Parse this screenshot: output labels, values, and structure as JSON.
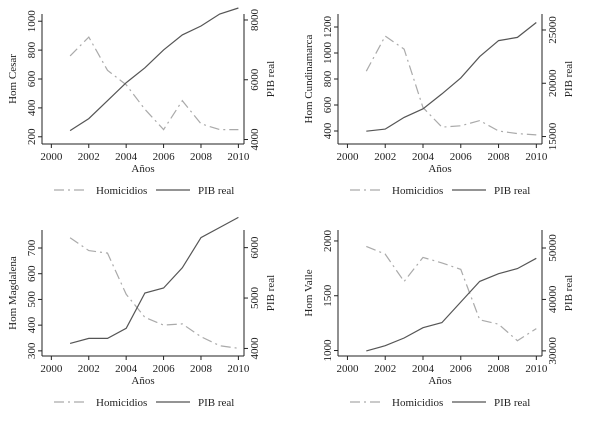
{
  "chart_data": [
    {
      "type": "line",
      "xlabel": "Años",
      "ylabel_left": "Hom Cesar",
      "ylabel_right": "PIB real",
      "x_ticks": [
        2000,
        2002,
        2004,
        2006,
        2008,
        2010
      ],
      "xlim": [
        1999.5,
        2010.3
      ],
      "left_ticks": [
        200,
        400,
        600,
        800,
        1000
      ],
      "left_lim": [
        150,
        1050
      ],
      "right_ticks": [
        4000,
        6000,
        8000
      ],
      "right_lim": [
        3850,
        8200
      ],
      "x": [
        2001,
        2002,
        2003,
        2004,
        2005,
        2006,
        2007,
        2008,
        2009,
        2010
      ],
      "series": [
        {
          "name": "Homicidios",
          "axis": "left",
          "style": "dashdot",
          "values": [
            760,
            890,
            660,
            560,
            390,
            250,
            450,
            290,
            250,
            250
          ]
        },
        {
          "name": "PIB real",
          "axis": "right",
          "style": "solid",
          "values": [
            4300,
            4700,
            5300,
            5900,
            6400,
            7000,
            7500,
            7800,
            8200,
            8400
          ]
        }
      ]
    },
    {
      "type": "line",
      "xlabel": "Años",
      "ylabel_left": "Hom Cundinamarca",
      "ylabel_right": "PIB real",
      "x_ticks": [
        2000,
        2002,
        2004,
        2006,
        2008,
        2010
      ],
      "xlim": [
        1999.5,
        2010.3
      ],
      "left_ticks": [
        400,
        600,
        800,
        1000,
        1200
      ],
      "left_lim": [
        300,
        1300
      ],
      "right_ticks": [
        15000,
        20000,
        25000
      ],
      "right_lim": [
        14300,
        26500
      ],
      "x": [
        2001,
        2002,
        2003,
        2004,
        2005,
        2006,
        2007,
        2008,
        2009,
        2010
      ],
      "series": [
        {
          "name": "Homicidios",
          "axis": "left",
          "style": "dashdot",
          "values": [
            860,
            1130,
            1030,
            580,
            430,
            440,
            480,
            400,
            380,
            370
          ]
        },
        {
          "name": "PIB real",
          "axis": "right",
          "style": "solid",
          "values": [
            15500,
            15700,
            16800,
            17600,
            19000,
            20500,
            22500,
            24000,
            24300,
            25700
          ]
        }
      ]
    },
    {
      "type": "line",
      "xlabel": "Años",
      "ylabel_left": "Hom Magdalena",
      "ylabel_right": "PIB real",
      "x_ticks": [
        2000,
        2002,
        2004,
        2006,
        2008,
        2010
      ],
      "xlim": [
        1999.5,
        2010.3
      ],
      "left_ticks": [
        300,
        400,
        500,
        600,
        700
      ],
      "left_lim": [
        280,
        770
      ],
      "right_ticks": [
        4000,
        5000,
        6000
      ],
      "right_lim": [
        3850,
        6350
      ],
      "x": [
        2001,
        2002,
        2003,
        2004,
        2005,
        2006,
        2007,
        2008,
        2009,
        2010
      ],
      "series": [
        {
          "name": "Homicidios",
          "axis": "left",
          "style": "dashdot",
          "values": [
            740,
            690,
            680,
            520,
            430,
            400,
            405,
            355,
            320,
            310
          ]
        },
        {
          "name": "PIB real",
          "axis": "right",
          "style": "solid",
          "values": [
            4100,
            4200,
            4200,
            4400,
            5100,
            5200,
            5600,
            6200,
            6400,
            6600
          ]
        }
      ]
    },
    {
      "type": "line",
      "xlabel": "Años",
      "ylabel_left": "Hom Valle",
      "ylabel_right": "PIB real",
      "x_ticks": [
        2000,
        2002,
        2004,
        2006,
        2008,
        2010
      ],
      "xlim": [
        1999.5,
        2010.3
      ],
      "left_ticks": [
        1000,
        1500,
        2000
      ],
      "left_lim": [
        950,
        2100
      ],
      "right_ticks": [
        30000,
        40000,
        50000
      ],
      "right_lim": [
        29000,
        53500
      ],
      "x": [
        2001,
        2002,
        2003,
        2004,
        2005,
        2006,
        2007,
        2008,
        2009,
        2010
      ],
      "series": [
        {
          "name": "Homicidios",
          "axis": "left",
          "style": "dashdot",
          "values": [
            1950,
            1880,
            1630,
            1850,
            1800,
            1740,
            1280,
            1240,
            1090,
            1200
          ]
        },
        {
          "name": "PIB real",
          "axis": "right",
          "style": "solid",
          "values": [
            30000,
            31000,
            32500,
            34500,
            35500,
            39500,
            43500,
            45000,
            46000,
            48000
          ]
        }
      ]
    }
  ]
}
